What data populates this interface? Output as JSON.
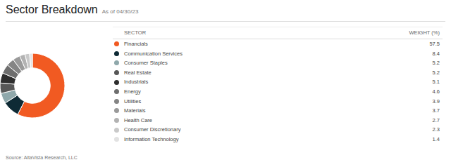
{
  "header": {
    "title": "Sector Breakdown",
    "as_of": "As of 04/30/23"
  },
  "table": {
    "columns": [
      "SECTOR",
      "WEIGHT (%)"
    ]
  },
  "chart_data": {
    "type": "pie",
    "categories": [
      "Financials",
      "Communication Services",
      "Consumer Staples",
      "Real Estate",
      "Industrials",
      "Energy",
      "Utilities",
      "Materials",
      "Health Care",
      "Consumer Discretionary",
      "Information Technology"
    ],
    "values": [
      57.5,
      8.4,
      5.2,
      5.2,
      5.1,
      4.6,
      3.9,
      3.7,
      2.7,
      2.3,
      1.4
    ],
    "colors": [
      "#f15a22",
      "#0e2a35",
      "#8fa8ab",
      "#575757",
      "#2e2e2e",
      "#6e6e6e",
      "#858585",
      "#9a9a9a",
      "#b2b2b2",
      "#c9c9c9",
      "#e2e2e2"
    ]
  },
  "source": "Source: AltaVista Research, LLC"
}
